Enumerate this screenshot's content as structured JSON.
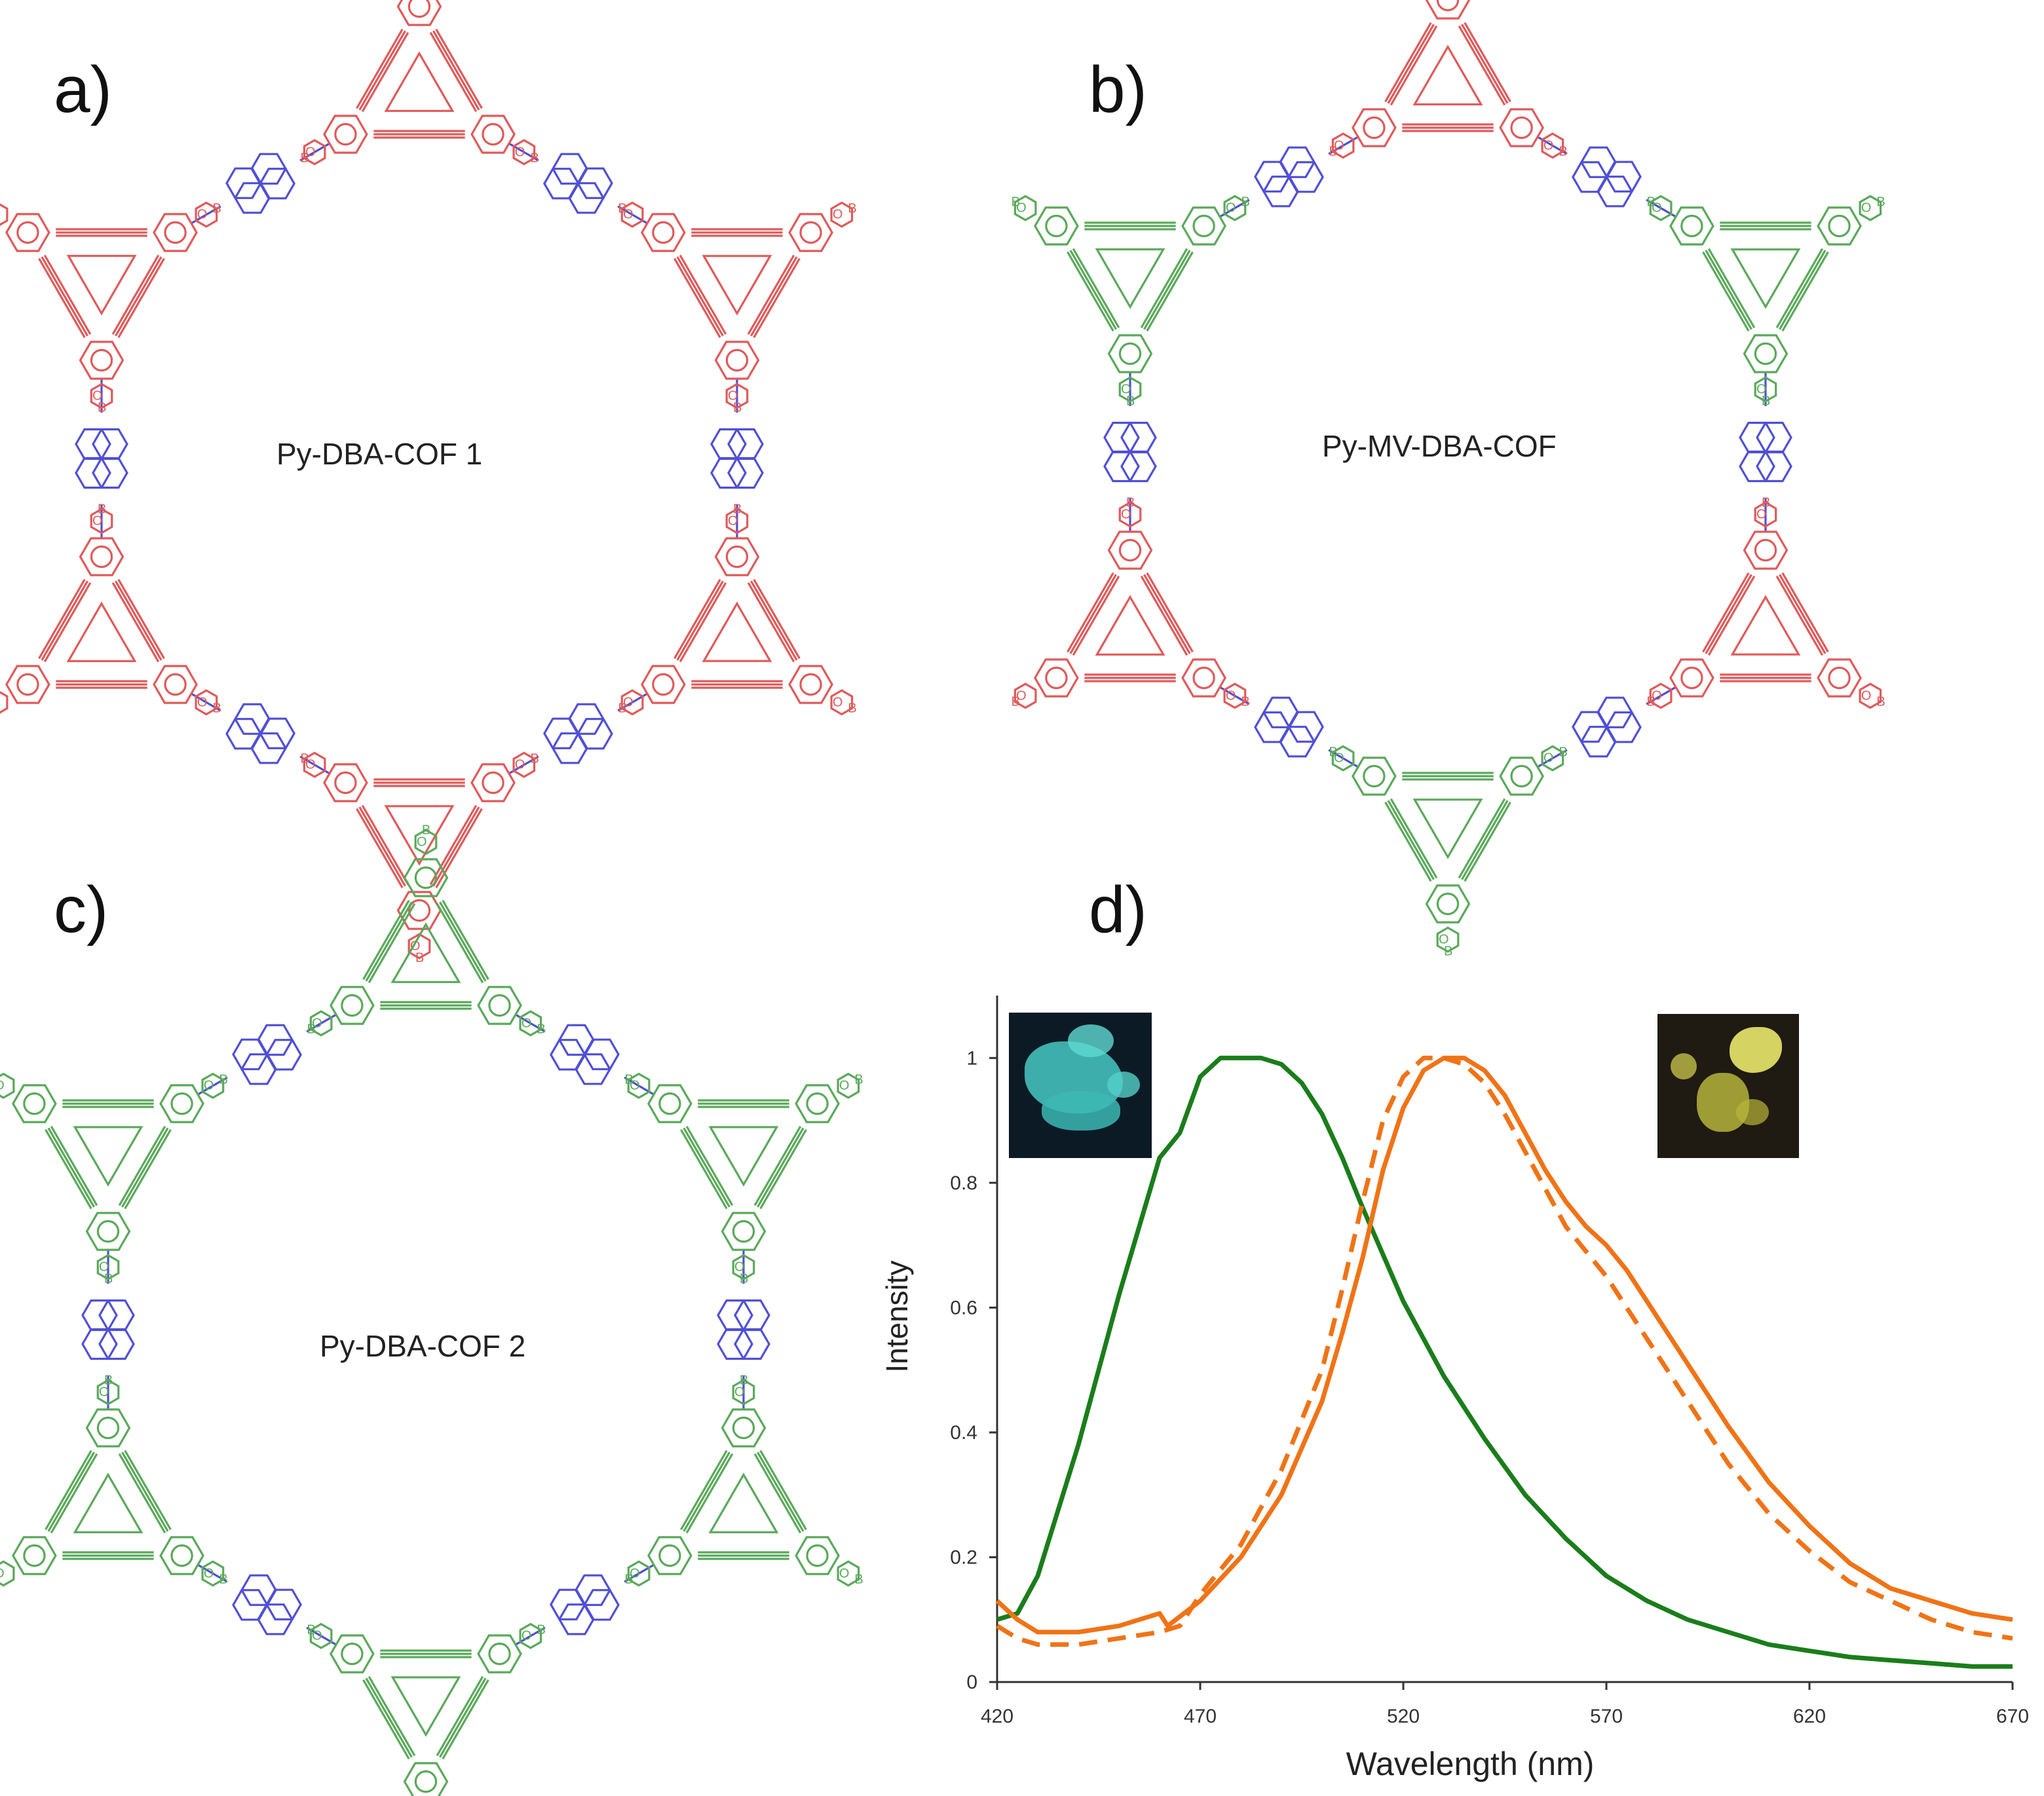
{
  "panels": {
    "a": {
      "letter": "a)",
      "name": "Py-DBA-COF 1"
    },
    "b": {
      "letter": "b)",
      "name": "Py-MV-DBA-COF"
    },
    "c": {
      "letter": "c)",
      "name": "Py-DBA-COF 2"
    },
    "d": {
      "letter": "d)"
    }
  },
  "colors": {
    "dba_red": "#e05a5a",
    "dba_green": "#5aa95a",
    "pyrene_blue": "#4f4fd6",
    "curve_green": "#1a7d1a",
    "curve_orange": "#f07316"
  },
  "atoms": {
    "boron": "B",
    "oxygen": "O"
  },
  "inset_photos": [
    {
      "name": "cyan-emission-photo",
      "color": "cyan"
    },
    {
      "name": "yellow-emission-photo",
      "color": "yellow"
    }
  ],
  "chart_data": {
    "type": "line",
    "title": "",
    "xlabel": "Wavelength (nm)",
    "ylabel": "Intensity",
    "xlim": [
      420,
      670
    ],
    "ylim": [
      0,
      1.1
    ],
    "xticks": [
      "420",
      "470",
      "520",
      "570",
      "620",
      "670"
    ],
    "yticks": [
      "0",
      "0.2",
      "0.4",
      "0.6",
      "0.8",
      "1"
    ],
    "series": [
      {
        "name": "green-solid",
        "style": "solid",
        "color": "#1a7d1a",
        "x": [
          420,
          425,
          430,
          440,
          450,
          460,
          465,
          470,
          475,
          480,
          485,
          490,
          495,
          500,
          505,
          510,
          520,
          530,
          540,
          550,
          560,
          570,
          580,
          590,
          600,
          610,
          620,
          630,
          640,
          650,
          660,
          670
        ],
        "y": [
          0.1,
          0.11,
          0.17,
          0.38,
          0.62,
          0.84,
          0.88,
          0.97,
          1.0,
          1.0,
          1.0,
          0.99,
          0.96,
          0.91,
          0.84,
          0.76,
          0.61,
          0.49,
          0.39,
          0.3,
          0.23,
          0.17,
          0.13,
          0.1,
          0.08,
          0.06,
          0.05,
          0.04,
          0.035,
          0.03,
          0.025,
          0.025
        ]
      },
      {
        "name": "orange-solid",
        "style": "solid",
        "color": "#f07316",
        "x": [
          420,
          425,
          430,
          440,
          450,
          460,
          462,
          470,
          480,
          490,
          500,
          505,
          510,
          515,
          520,
          525,
          530,
          535,
          540,
          545,
          550,
          555,
          560,
          565,
          570,
          575,
          580,
          590,
          600,
          610,
          620,
          630,
          640,
          650,
          660,
          670
        ],
        "y": [
          0.13,
          0.1,
          0.08,
          0.08,
          0.09,
          0.11,
          0.09,
          0.13,
          0.2,
          0.3,
          0.45,
          0.56,
          0.68,
          0.82,
          0.92,
          0.98,
          1.0,
          1.0,
          0.98,
          0.94,
          0.88,
          0.82,
          0.77,
          0.73,
          0.7,
          0.66,
          0.61,
          0.51,
          0.41,
          0.32,
          0.25,
          0.19,
          0.15,
          0.13,
          0.11,
          0.1
        ]
      },
      {
        "name": "orange-dashed",
        "style": "dashed",
        "color": "#f07316",
        "x": [
          420,
          425,
          430,
          440,
          450,
          460,
          465,
          470,
          480,
          490,
          500,
          505,
          510,
          515,
          520,
          525,
          530,
          535,
          540,
          545,
          550,
          555,
          560,
          565,
          570,
          575,
          580,
          590,
          600,
          610,
          620,
          630,
          640,
          650,
          660,
          670
        ],
        "y": [
          0.09,
          0.07,
          0.06,
          0.06,
          0.07,
          0.08,
          0.09,
          0.14,
          0.22,
          0.34,
          0.5,
          0.63,
          0.77,
          0.9,
          0.97,
          1.0,
          1.0,
          0.99,
          0.96,
          0.91,
          0.85,
          0.79,
          0.73,
          0.69,
          0.65,
          0.6,
          0.55,
          0.45,
          0.35,
          0.27,
          0.21,
          0.16,
          0.13,
          0.1,
          0.08,
          0.07
        ]
      }
    ]
  }
}
